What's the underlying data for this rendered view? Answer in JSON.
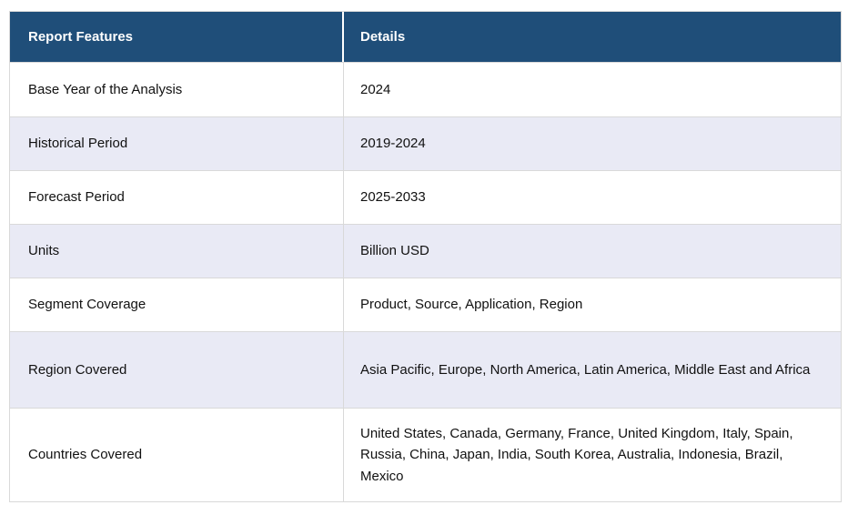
{
  "table": {
    "header": {
      "feature_label": "Report Features",
      "details_label": "Details"
    },
    "rows": [
      {
        "feature": "Base Year of the Analysis",
        "details": "2024"
      },
      {
        "feature": "Historical Period",
        "details": "2019-2024"
      },
      {
        "feature": "Forecast Period",
        "details": "2025-2033"
      },
      {
        "feature": "Units",
        "details": "Billion USD"
      },
      {
        "feature": "Segment Coverage",
        "details": "Product, Source, Application, Region"
      },
      {
        "feature": "Region Covered",
        "details": "Asia Pacific, Europe, North America, Latin America, Middle East and Africa"
      },
      {
        "feature": "Countries Covered",
        "details": "United States, Canada, Germany, France, United Kingdom, Italy, Spain, Russia, China, Japan, India, South Korea, Australia, Indonesia, Brazil, Mexico"
      }
    ],
    "colors": {
      "header_bg": "#1f4e79",
      "header_text": "#ffffff",
      "row_bg": "#ffffff",
      "row_alt_bg": "#e9eaf5",
      "border": "#d9d9d9",
      "body_text": "#111111"
    }
  }
}
